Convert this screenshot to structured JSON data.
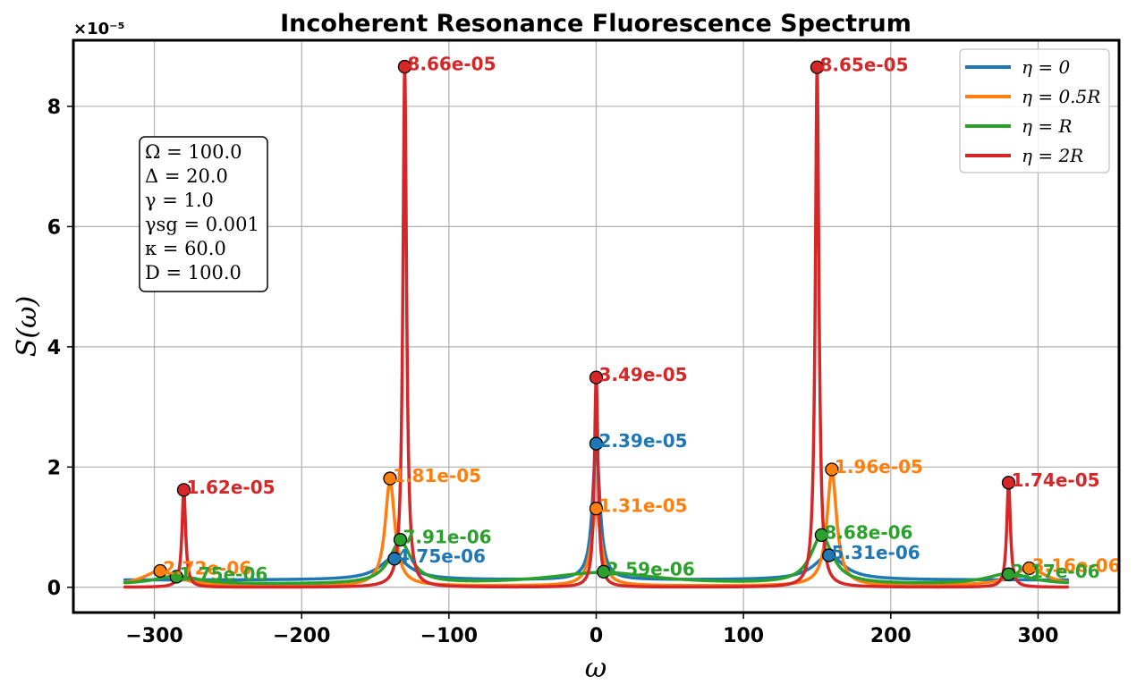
{
  "chart_data": {
    "type": "line",
    "title": "Incoherent Resonance Fluorescence Spectrum",
    "xlabel": "ω",
    "ylabel": "S(ω)",
    "y_offset_label": "×10⁻⁵",
    "y_scale": 1e-05,
    "xlim": [
      -355,
      355
    ],
    "ylim": [
      -0.42,
      9.1
    ],
    "x_ticks": [
      -300,
      -200,
      -100,
      0,
      100,
      200,
      300
    ],
    "x_tick_labels": [
      "−300",
      "−200",
      "−100",
      "0",
      "100",
      "200",
      "300"
    ],
    "y_ticks": [
      0,
      2,
      4,
      6,
      8
    ],
    "y_tick_labels": [
      "0",
      "2",
      "4",
      "6",
      "8"
    ],
    "grid": true,
    "legend_position": "top-right",
    "parameters": [
      "Ω = 100.0",
      "Δ = 20.0",
      "γ = 1.0",
      "γsg = 0.001",
      "κ = 60.0",
      "D = 100.0"
    ],
    "series": [
      {
        "name": "η = 0",
        "color": "#1f77b4",
        "baseline": 0.12,
        "peaks": [
          {
            "x": -137,
            "height": 0.38,
            "width": 12
          },
          {
            "x": 0,
            "height": 2.25,
            "width": 3
          },
          {
            "x": 158,
            "height": 0.42,
            "width": 12
          }
        ],
        "markers": [
          {
            "x": -137,
            "y": 0.475,
            "label": "4.75e-06"
          },
          {
            "x": 0,
            "y": 2.39,
            "label": "2.39e-05"
          },
          {
            "x": 158,
            "y": 0.531,
            "label": "5.31e-06"
          }
        ]
      },
      {
        "name": "η = 0.5R",
        "color": "#ff7f0e",
        "baseline": 0.02,
        "peaks": [
          {
            "x": -296,
            "height": 0.25,
            "width": 14
          },
          {
            "x": -140,
            "height": 1.75,
            "width": 4
          },
          {
            "x": 0,
            "height": 1.25,
            "width": 4
          },
          {
            "x": 160,
            "height": 1.9,
            "width": 4
          },
          {
            "x": 294,
            "height": 0.29,
            "width": 14
          }
        ],
        "markers": [
          {
            "x": -296,
            "y": 0.272,
            "label": "2.72e-06"
          },
          {
            "x": -140,
            "y": 1.81,
            "label": "1.81e-05"
          },
          {
            "x": 0,
            "y": 1.31,
            "label": "1.31e-05"
          },
          {
            "x": 160,
            "y": 1.96,
            "label": "1.96e-05"
          },
          {
            "x": 294,
            "y": 0.316,
            "label": "3.16e-06"
          }
        ]
      },
      {
        "name": "η = R",
        "color": "#2ca02c",
        "baseline": 0.04,
        "peaks": [
          {
            "x": -285,
            "height": 0.14,
            "width": 18
          },
          {
            "x": -133,
            "height": 0.7,
            "width": 9
          },
          {
            "x": 4,
            "height": 0.2,
            "width": 45
          },
          {
            "x": 153,
            "height": 0.8,
            "width": 9
          },
          {
            "x": 280,
            "height": 0.18,
            "width": 18
          }
        ],
        "markers": [
          {
            "x": -285,
            "y": 0.175,
            "label": "1.75e-06"
          },
          {
            "x": -133,
            "y": 0.791,
            "label": "7.91e-06"
          },
          {
            "x": 5,
            "y": 0.259,
            "label": "2.59e-06"
          },
          {
            "x": 153,
            "y": 0.868,
            "label": "8.68e-06"
          },
          {
            "x": 280,
            "y": 0.217,
            "label": "2.17e-06"
          }
        ]
      },
      {
        "name": "η = 2R",
        "color": "#d62728",
        "baseline": 0.0,
        "peaks": [
          {
            "x": -280,
            "height": 1.62,
            "width": 1.5
          },
          {
            "x": -130,
            "height": 8.66,
            "width": 1.5
          },
          {
            "x": 0,
            "height": 3.49,
            "width": 1.5
          },
          {
            "x": 150,
            "height": 8.65,
            "width": 1.5
          },
          {
            "x": 280,
            "height": 1.74,
            "width": 1.5
          }
        ],
        "markers": [
          {
            "x": -280,
            "y": 1.62,
            "label": "1.62e-05"
          },
          {
            "x": -130,
            "y": 8.66,
            "label": "8.66e-05"
          },
          {
            "x": 0,
            "y": 3.49,
            "label": "3.49e-05"
          },
          {
            "x": 150,
            "y": 8.65,
            "label": "8.65e-05"
          },
          {
            "x": 280,
            "y": 1.74,
            "label": "1.74e-05"
          }
        ]
      }
    ]
  }
}
